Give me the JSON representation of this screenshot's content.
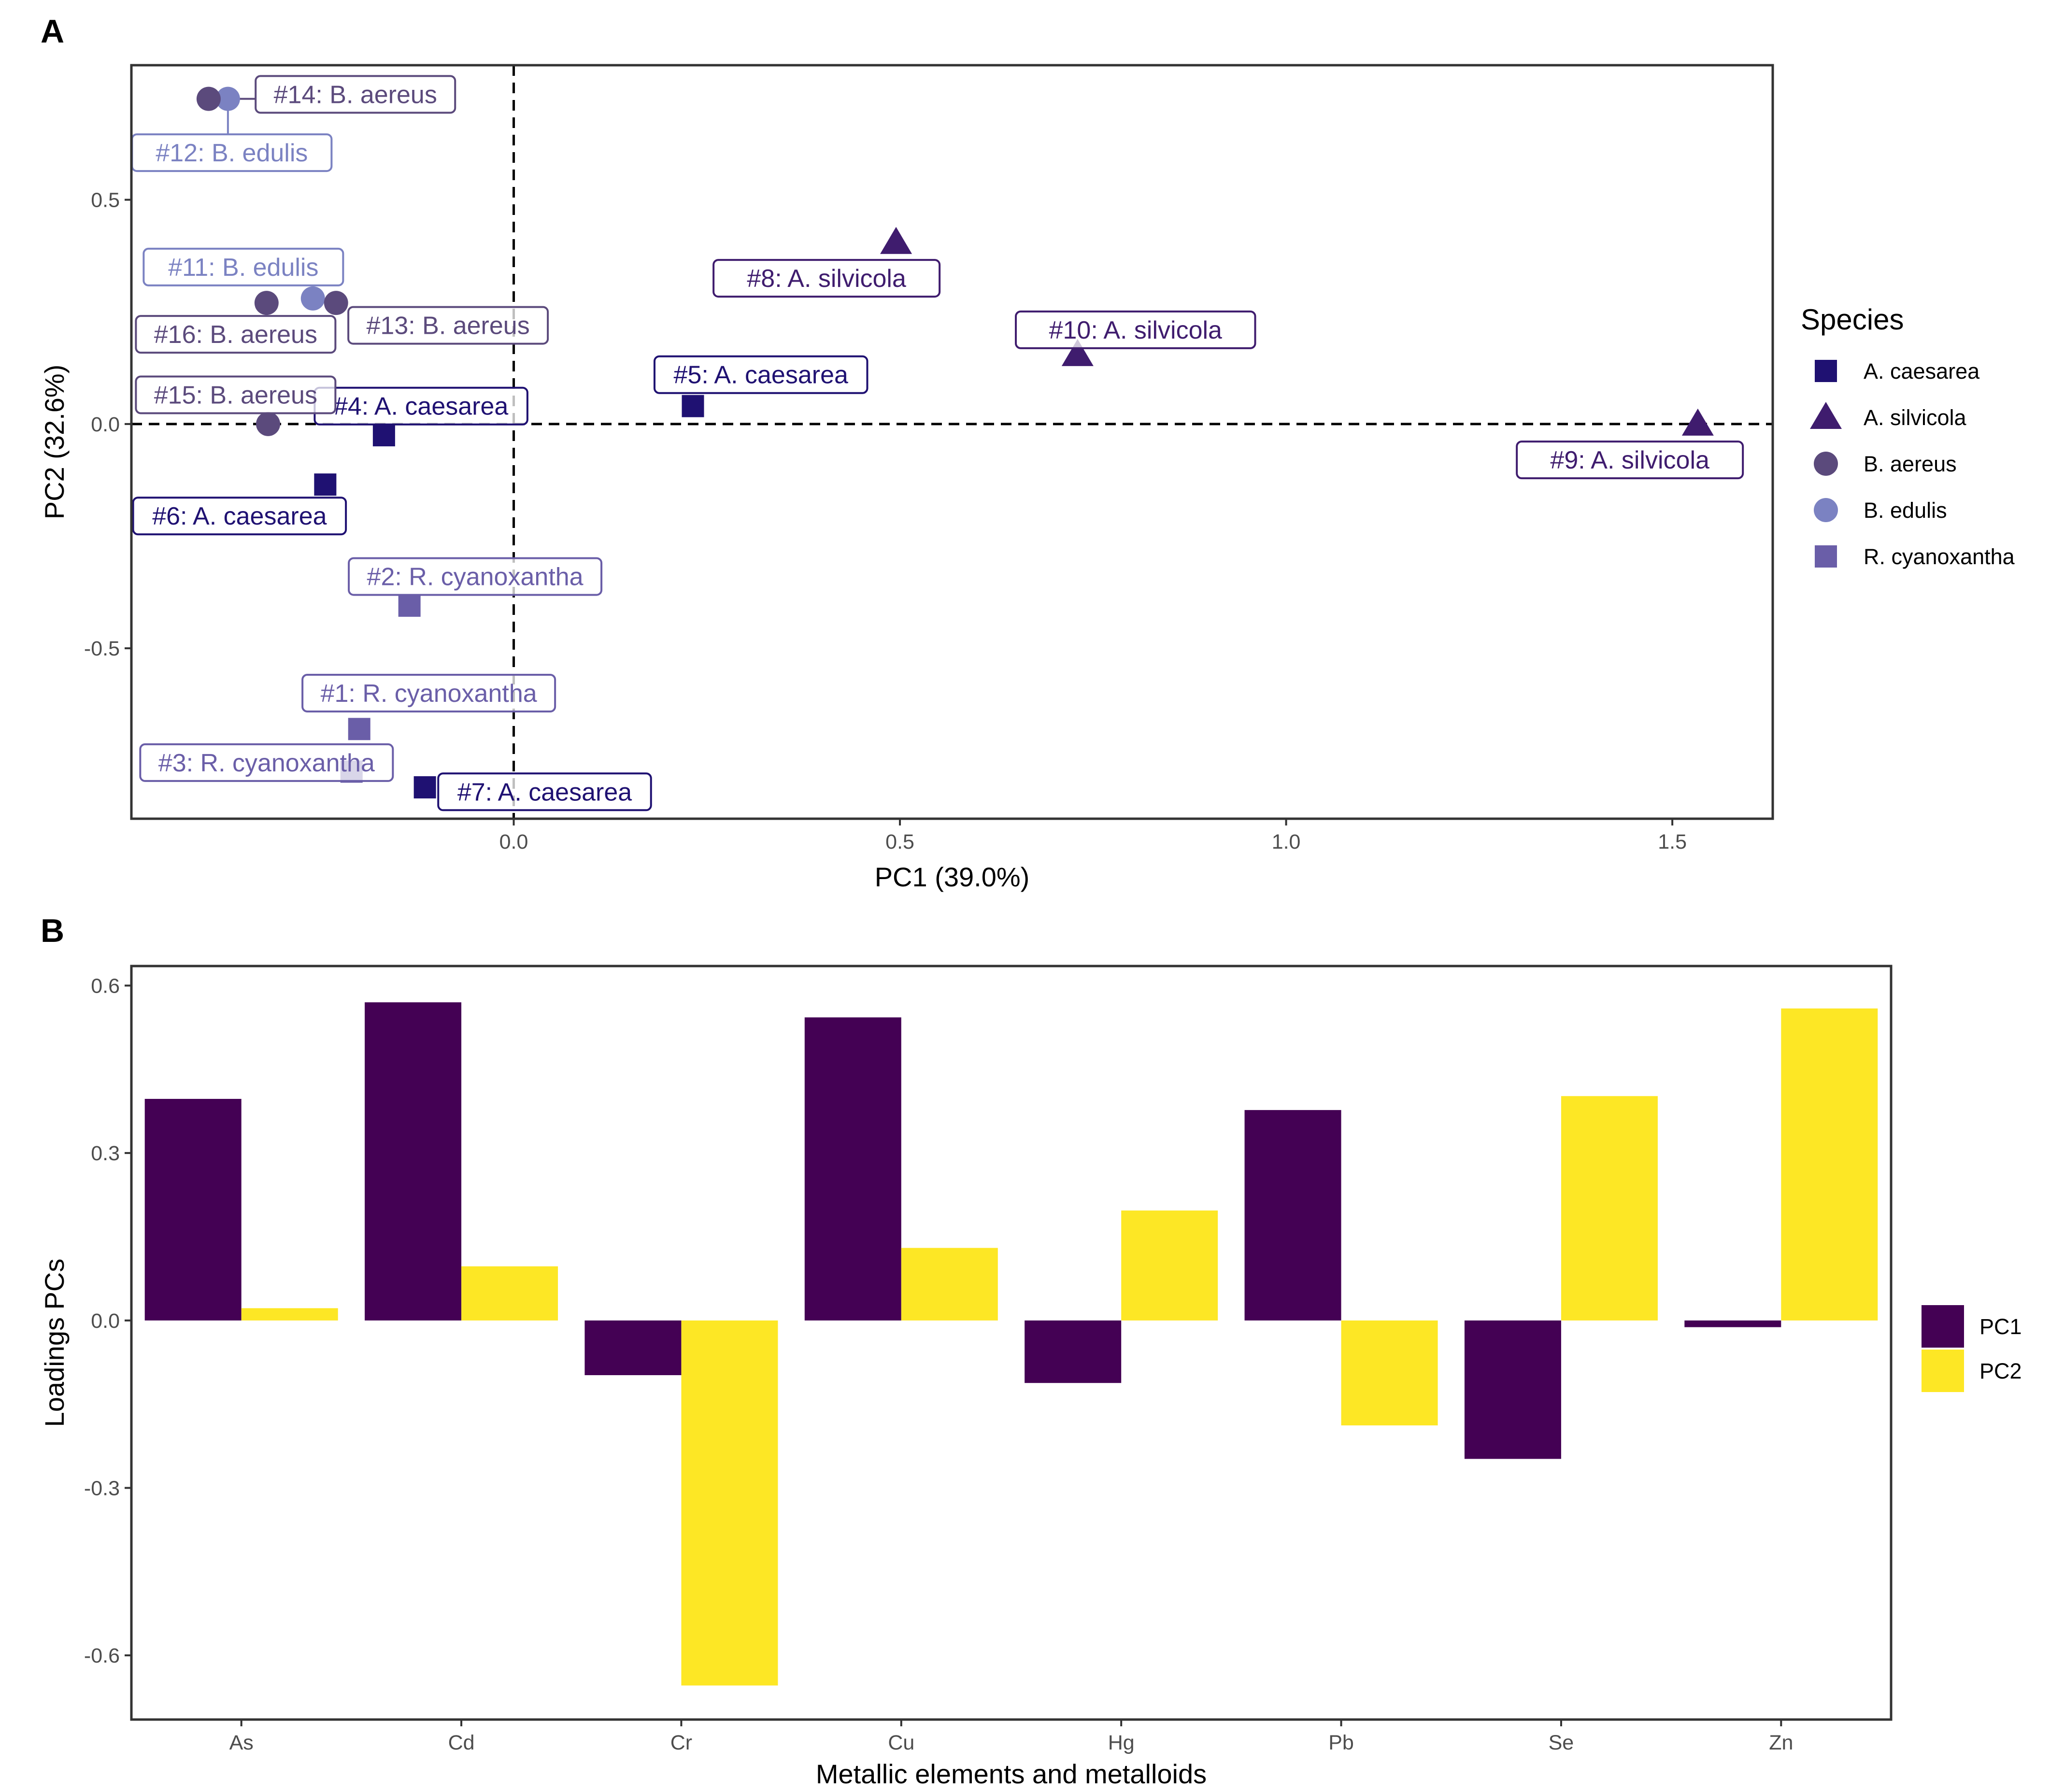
{
  "panels": {
    "a_letter": "A",
    "b_letter": "B"
  },
  "colors": {
    "A. caesarea": "#1f1172",
    "A. silvicola": "#3f1c6e",
    "B. aereus": "#5b4a7c",
    "B. edulis": "#7b82c2",
    "R. cyanoxantha": "#6a5ea8",
    "PC1": "#440154",
    "PC2": "#fde725"
  },
  "chart_data": [
    {
      "type": "scatter",
      "panel": "A",
      "xlabel": "PC1 (39.0%)",
      "ylabel": "PC2 (32.6%)",
      "xlim": [
        -0.495,
        1.63
      ],
      "ylim": [
        -0.88,
        0.8
      ],
      "xticks": [
        0.0,
        0.5,
        1.0,
        1.5
      ],
      "xtick_labels": [
        "0.0",
        "0.5",
        "1.0",
        "1.5"
      ],
      "yticks": [
        -0.5,
        0.0,
        0.5
      ],
      "ytick_labels": [
        "-0.5",
        "0.0",
        "0.5"
      ],
      "reference_lines": {
        "x": 0,
        "y": 0,
        "style": "dashed"
      },
      "legend": {
        "title": "Species",
        "entries": [
          {
            "label": "A. caesarea",
            "shape": "square"
          },
          {
            "label": "A. silvicola",
            "shape": "triangle"
          },
          {
            "label": "B. aereus",
            "shape": "circle"
          },
          {
            "label": "B. edulis",
            "shape": "circle"
          },
          {
            "label": "R. cyanoxantha",
            "shape": "square"
          }
        ]
      },
      "points": [
        {
          "label": "#1: R. cyanoxantha",
          "species": "R. cyanoxantha",
          "x": -0.2,
          "y": -0.68,
          "lx": -0.11,
          "ly": -0.6
        },
        {
          "label": "#2: R. cyanoxantha",
          "species": "R. cyanoxantha",
          "x": -0.135,
          "y": -0.405,
          "lx": -0.05,
          "ly": -0.34
        },
        {
          "label": "#3: R. cyanoxantha",
          "species": "R. cyanoxantha",
          "x": -0.21,
          "y": -0.775,
          "lx": -0.32,
          "ly": -0.755
        },
        {
          "label": "#4: A. caesarea",
          "species": "A. caesarea",
          "x": -0.168,
          "y": -0.025,
          "lx": -0.12,
          "ly": 0.04
        },
        {
          "label": "#5: A. caesarea",
          "species": "A. caesarea",
          "x": 0.232,
          "y": 0.04,
          "lx": 0.32,
          "ly": 0.11
        },
        {
          "label": "#6: A. caesarea",
          "species": "A. caesarea",
          "x": -0.244,
          "y": -0.135,
          "lx": -0.355,
          "ly": -0.205
        },
        {
          "label": "#7: A. caesarea",
          "species": "A. caesarea",
          "x": -0.115,
          "y": -0.81,
          "lx": 0.04,
          "ly": -0.82
        },
        {
          "label": "#8: A. silvicola",
          "species": "A. silvicola",
          "x": 0.495,
          "y": 0.405,
          "lx": 0.405,
          "ly": 0.325
        },
        {
          "label": "#9: A. silvicola",
          "species": "A. silvicola",
          "x": 1.533,
          "y": 0.0,
          "lx": 1.445,
          "ly": -0.08
        },
        {
          "label": "#10: A. silvicola",
          "species": "A. silvicola",
          "x": 0.73,
          "y": 0.155,
          "lx": 0.805,
          "ly": 0.21
        },
        {
          "label": "#11: B. edulis",
          "species": "B. edulis",
          "x": -0.26,
          "y": 0.28,
          "lx": -0.35,
          "ly": 0.35
        },
        {
          "label": "#12: B. edulis",
          "species": "B. edulis",
          "x": -0.37,
          "y": 0.725,
          "lx": -0.365,
          "ly": 0.605
        },
        {
          "label": "#13: B. aereus",
          "species": "B. aereus",
          "x": -0.23,
          "y": 0.27,
          "lx": -0.085,
          "ly": 0.22
        },
        {
          "label": "#14: B. aereus",
          "species": "B. aereus",
          "x": -0.395,
          "y": 0.725,
          "lx": -0.205,
          "ly": 0.735
        },
        {
          "label": "#15: B. aereus",
          "species": "B. aereus",
          "x": -0.318,
          "y": 0.0,
          "lx": -0.36,
          "ly": 0.065
        },
        {
          "label": "#16: B. aereus",
          "species": "B. aereus",
          "x": -0.32,
          "y": 0.27,
          "lx": -0.36,
          "ly": 0.2
        }
      ]
    },
    {
      "type": "bar",
      "panel": "B",
      "xlabel": "Metallic elements and metalloids",
      "ylabel": "Loadings PCs",
      "ylim": [
        -0.715,
        0.635
      ],
      "yticks": [
        -0.6,
        -0.3,
        0.0,
        0.3,
        0.6
      ],
      "ytick_labels": [
        "-0.6",
        "-0.3",
        "0.0",
        "0.3",
        "0.6"
      ],
      "categories": [
        "As",
        "Cd",
        "Cr",
        "Cu",
        "Hg",
        "Pb",
        "Se",
        "Zn"
      ],
      "series": [
        {
          "name": "PC1",
          "values": [
            0.397,
            0.57,
            -0.098,
            0.543,
            -0.112,
            0.377,
            -0.248,
            -0.012
          ]
        },
        {
          "name": "PC2",
          "values": [
            0.022,
            0.097,
            -0.654,
            0.13,
            0.197,
            -0.188,
            0.402,
            0.559
          ]
        }
      ],
      "legend": {
        "entries": [
          "PC1",
          "PC2"
        ]
      }
    }
  ]
}
